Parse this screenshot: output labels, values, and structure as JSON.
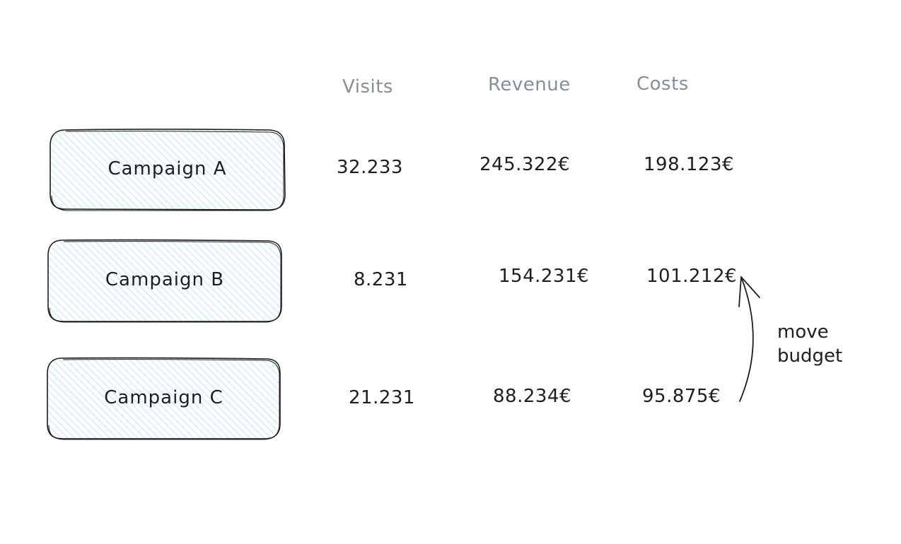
{
  "headers": {
    "visits": "Visits",
    "revenue": "Revenue",
    "costs": "Costs"
  },
  "campaigns": [
    {
      "label": "Campaign A",
      "visits": "32.233",
      "revenue": "245.322€",
      "costs": "198.123€"
    },
    {
      "label": "Campaign B",
      "visits": "8.231",
      "revenue": "154.231€",
      "costs": "101.212€"
    },
    {
      "label": "Campaign C",
      "visits": "21.231",
      "revenue": "88.234€",
      "costs": "95.875€"
    }
  ],
  "annotation": {
    "line1": "move",
    "line2": "budget"
  },
  "colors": {
    "box_fill_hatch": "#a5d8ff",
    "stroke": "#1e1e1e",
    "header_text": "#868e96"
  }
}
